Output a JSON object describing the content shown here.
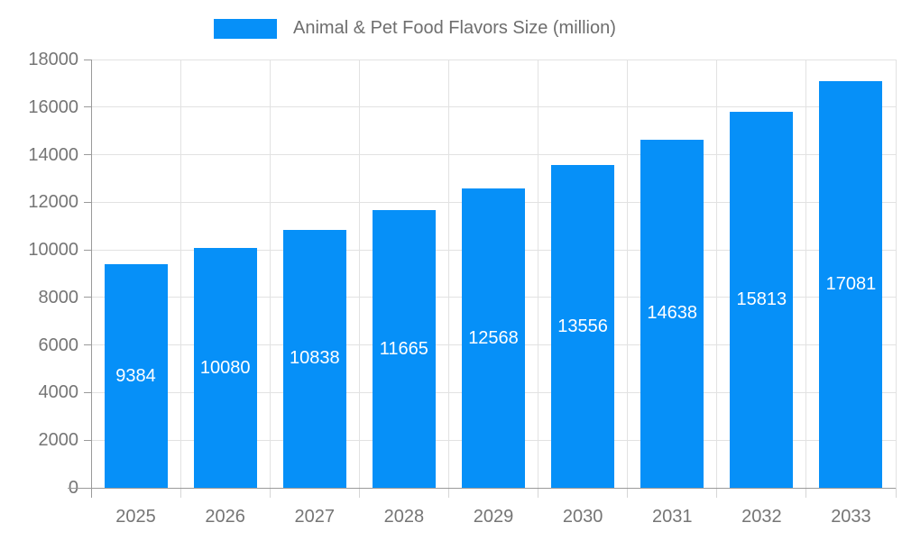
{
  "legend": {
    "label": "Animal & Pet Food Flavors Size (million)",
    "swatch_color": "#0690f8"
  },
  "chart_data": {
    "type": "bar",
    "title": "Animal & Pet Food Flavors Size (million)",
    "categories": [
      "2025",
      "2026",
      "2027",
      "2028",
      "2029",
      "2030",
      "2031",
      "2032",
      "2033"
    ],
    "values": [
      9384,
      10080,
      10838,
      11665,
      12568,
      13556,
      14638,
      15813,
      17081
    ],
    "xlabel": "",
    "ylabel": "",
    "ylim": [
      0,
      18000
    ],
    "yticks": [
      0,
      2000,
      4000,
      6000,
      8000,
      10000,
      12000,
      14000,
      16000,
      18000
    ],
    "grid": true,
    "legend_position": "top-center",
    "bar_label_position": "inside-middle",
    "colors": {
      "bar": "#0690f8",
      "bar_label": "#ffffff",
      "axis_label": "#757575",
      "grid_line": "#e2e2e2",
      "axis_line": "#9a9a9a",
      "x_tick": "#d6d6d6",
      "legend_text": "#6e6e6e"
    }
  }
}
